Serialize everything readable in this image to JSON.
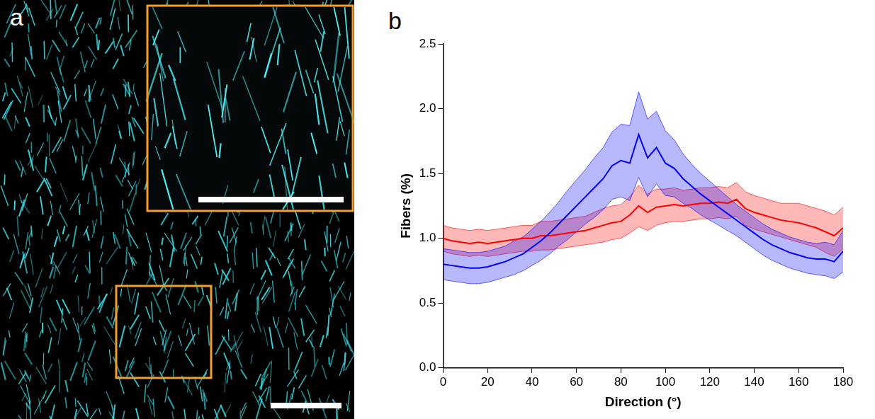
{
  "panel_a": {
    "letter": "a"
  },
  "chart_data": {
    "type": "line",
    "panel_letter": "b",
    "x_label": "Direction (°)",
    "y_label": "Fibers (%)",
    "x": [
      0,
      4,
      8,
      12,
      16,
      20,
      24,
      28,
      32,
      36,
      40,
      44,
      48,
      52,
      56,
      60,
      64,
      68,
      72,
      76,
      80,
      84,
      88,
      92,
      96,
      100,
      104,
      108,
      112,
      116,
      120,
      124,
      128,
      132,
      136,
      140,
      144,
      148,
      152,
      156,
      160,
      164,
      168,
      172,
      176,
      180
    ],
    "xlim": [
      0,
      180
    ],
    "xticks": [
      0,
      20,
      40,
      60,
      80,
      100,
      120,
      140,
      160,
      180
    ],
    "ylim": [
      0,
      2.5
    ],
    "yticks": [
      {
        "value": 0,
        "label": "0.0"
      },
      0.5,
      {
        "value": 1,
        "label": "1.0"
      },
      1.5,
      {
        "value": 2,
        "label": "2.0"
      },
      2.5
    ],
    "grid": false,
    "series": [
      {
        "color": "#0000ff",
        "values": [
          0.8,
          0.79,
          0.78,
          0.77,
          0.77,
          0.78,
          0.8,
          0.82,
          0.85,
          0.88,
          0.93,
          0.98,
          1.04,
          1.11,
          1.18,
          1.25,
          1.32,
          1.39,
          1.46,
          1.56,
          1.6,
          1.58,
          1.8,
          1.62,
          1.7,
          1.58,
          1.54,
          1.46,
          1.4,
          1.34,
          1.29,
          1.24,
          1.19,
          1.14,
          1.09,
          1.04,
          0.99,
          0.95,
          0.92,
          0.89,
          0.87,
          0.85,
          0.84,
          0.84,
          0.82,
          0.9
        ],
        "lower": [
          0.68,
          0.67,
          0.66,
          0.65,
          0.65,
          0.66,
          0.68,
          0.7,
          0.72,
          0.75,
          0.79,
          0.83,
          0.88,
          0.94,
          0.99,
          1.05,
          1.11,
          1.16,
          1.22,
          1.3,
          1.32,
          1.29,
          1.47,
          1.32,
          1.42,
          1.33,
          1.32,
          1.27,
          1.23,
          1.18,
          1.14,
          1.1,
          1.06,
          1.02,
          0.97,
          0.92,
          0.87,
          0.83,
          0.8,
          0.77,
          0.75,
          0.73,
          0.72,
          0.71,
          0.69,
          0.74
        ],
        "upper": [
          0.92,
          0.91,
          0.9,
          0.89,
          0.89,
          0.9,
          0.92,
          0.94,
          0.98,
          1.01,
          1.07,
          1.13,
          1.2,
          1.28,
          1.37,
          1.45,
          1.53,
          1.62,
          1.7,
          1.82,
          1.88,
          1.87,
          2.13,
          1.92,
          1.98,
          1.83,
          1.76,
          1.65,
          1.57,
          1.5,
          1.44,
          1.38,
          1.32,
          1.26,
          1.21,
          1.16,
          1.11,
          1.07,
          1.04,
          1.01,
          0.99,
          0.97,
          0.96,
          0.97,
          0.95,
          1.06
        ]
      },
      {
        "color": "#ff0000",
        "values": [
          1.0,
          0.98,
          0.97,
          0.96,
          0.97,
          0.96,
          0.97,
          0.98,
          0.99,
          1.0,
          1.0,
          1.02,
          1.02,
          1.03,
          1.04,
          1.05,
          1.06,
          1.08,
          1.1,
          1.12,
          1.13,
          1.18,
          1.25,
          1.2,
          1.24,
          1.25,
          1.26,
          1.25,
          1.26,
          1.27,
          1.27,
          1.28,
          1.27,
          1.3,
          1.23,
          1.2,
          1.18,
          1.16,
          1.14,
          1.13,
          1.12,
          1.1,
          1.08,
          1.05,
          1.02,
          1.08
        ],
        "lower": [
          0.9,
          0.88,
          0.87,
          0.86,
          0.87,
          0.86,
          0.87,
          0.88,
          0.89,
          0.9,
          0.9,
          0.91,
          0.91,
          0.92,
          0.93,
          0.94,
          0.95,
          0.96,
          0.97,
          0.99,
          1.0,
          1.04,
          1.09,
          1.06,
          1.1,
          1.12,
          1.13,
          1.13,
          1.14,
          1.15,
          1.15,
          1.16,
          1.15,
          1.17,
          1.1,
          1.07,
          1.05,
          1.03,
          1.01,
          0.99,
          0.97,
          0.95,
          0.93,
          0.89,
          0.86,
          0.92
        ],
        "upper": [
          1.1,
          1.08,
          1.07,
          1.06,
          1.07,
          1.06,
          1.07,
          1.08,
          1.09,
          1.1,
          1.1,
          1.13,
          1.13,
          1.14,
          1.15,
          1.16,
          1.17,
          1.2,
          1.23,
          1.25,
          1.26,
          1.32,
          1.41,
          1.34,
          1.38,
          1.38,
          1.39,
          1.37,
          1.38,
          1.39,
          1.39,
          1.4,
          1.39,
          1.43,
          1.36,
          1.33,
          1.31,
          1.29,
          1.27,
          1.27,
          1.27,
          1.25,
          1.23,
          1.21,
          1.18,
          1.24
        ]
      }
    ]
  }
}
